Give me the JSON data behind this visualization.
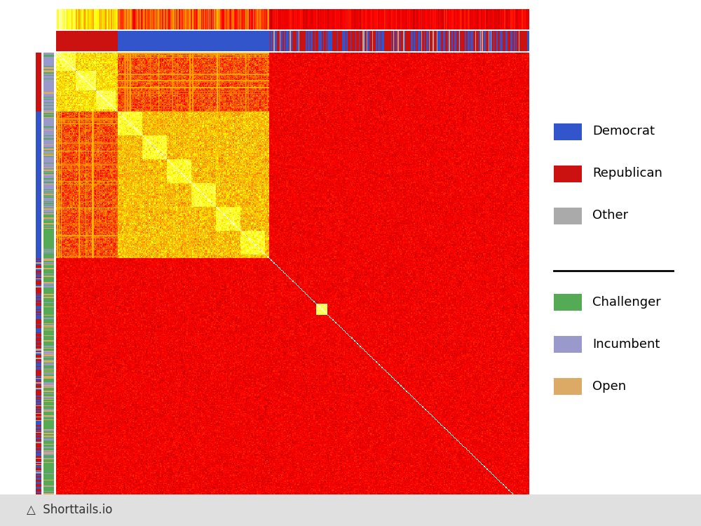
{
  "n_candidates": 500,
  "party_colors": {
    "Republican": "#CC1111",
    "Democrat": "#3355CC",
    "Other": "#AAAAAA"
  },
  "seat_colors": {
    "Incumbent": "#9999CC",
    "Challenger": "#55AA55",
    "Open": "#DDAA66"
  },
  "legend_items_party": [
    {
      "label": "Democrat",
      "color": "#3355CC"
    },
    {
      "label": "Republican",
      "color": "#CC1111"
    },
    {
      "label": "Other",
      "color": "#AAAAAA"
    }
  ],
  "legend_items_seat": [
    {
      "label": "Challenger",
      "color": "#55AA55"
    },
    {
      "label": "Incumbent",
      "color": "#9999CC"
    },
    {
      "label": "Open",
      "color": "#DDAA66"
    }
  ],
  "background_color": "#FFFFFF",
  "footer_text": "Shorttails.io",
  "footer_bg": "#E0E0E0"
}
